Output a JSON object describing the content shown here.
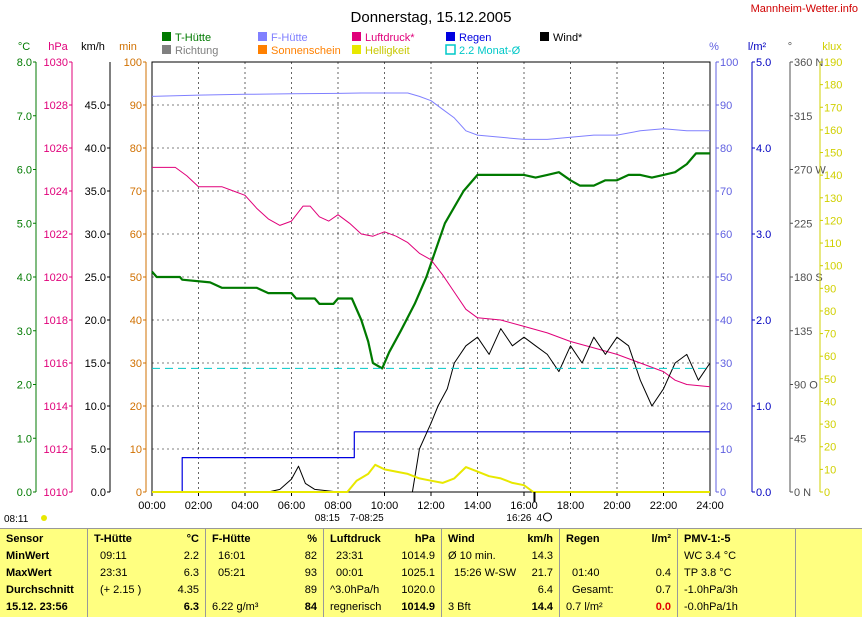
{
  "title": "Donnerstag, 15.12.2005",
  "site": "Mannheim-Wetter.info",
  "colors": {
    "temp": "#007a00",
    "humid": "#8080ff",
    "press": "#e0007a",
    "rain": "#0000e0",
    "wind": "#000000",
    "dir": "#808080",
    "sun": "#ff8000",
    "bright": "#e8e800",
    "avg": "#00c8c8",
    "grid": "#000000"
  },
  "legend": [
    {
      "label": "T-Hütte",
      "color": "#007a00"
    },
    {
      "label": "F-Hütte",
      "color": "#8080ff"
    },
    {
      "label": "Luftdruck*",
      "color": "#e0007a"
    },
    {
      "label": "Regen",
      "color": "#0000e0"
    },
    {
      "label": "Wind*",
      "color": "#000000"
    },
    {
      "label": "Richtung",
      "color": "#808080"
    },
    {
      "label": "Sonnenschein",
      "color": "#ff8000"
    },
    {
      "label": "Helligkeit",
      "color": "#e8e800"
    },
    {
      "label": "2.2 Monat-Ø",
      "color": "#00c8c8"
    }
  ],
  "axes": {
    "temp": {
      "unit": "°C",
      "ticks": [
        "0.0",
        "1.0",
        "2.0",
        "3.0",
        "4.0",
        "5.0",
        "6.0",
        "7.0",
        "8.0"
      ]
    },
    "press": {
      "unit": "hPa",
      "ticks": [
        "1010",
        "1012",
        "1014",
        "1016",
        "1018",
        "1020",
        "1022",
        "1024",
        "1026",
        "1028",
        "1030"
      ]
    },
    "wind": {
      "unit": "km/h",
      "ticks": [
        "0.0",
        "5.0",
        "10.0",
        "15.0",
        "20.0",
        "25.0",
        "30.0",
        "35.0",
        "40.0",
        "45.0"
      ]
    },
    "min": {
      "unit": "min",
      "ticks": [
        "0",
        "10",
        "20",
        "30",
        "40",
        "50",
        "60",
        "70",
        "80",
        "90",
        "100"
      ]
    },
    "humid": {
      "unit": "%",
      "ticks": [
        "0",
        "10",
        "20",
        "30",
        "40",
        "50",
        "60",
        "70",
        "80",
        "90",
        "100"
      ]
    },
    "rain": {
      "unit": "l/m²",
      "ticks": [
        "0.0",
        "1.0",
        "2.0",
        "3.0",
        "4.0",
        "5.0"
      ]
    },
    "dir": {
      "unit": "°",
      "ticks": [
        "0 N",
        "45",
        "90 O",
        "135",
        "180 S",
        "225",
        "270 W",
        "315",
        "360 N"
      ]
    },
    "lux": {
      "unit": "klux",
      "ticks": [
        "0",
        "10",
        "20",
        "30",
        "40",
        "50",
        "60",
        "70",
        "80",
        "90",
        "100",
        "110",
        "120",
        "130",
        "140",
        "150",
        "160",
        "170",
        "180",
        "190"
      ]
    },
    "time": {
      "ticks": [
        "00:00",
        "02:00",
        "04:00",
        "06:00",
        "08:00",
        "10:00",
        "12:00",
        "14:00",
        "16:00",
        "18:00",
        "20:00",
        "22:00",
        "24:00"
      ]
    }
  },
  "sun_events": {
    "rise": "08:15",
    "rise_range": "7-08:25",
    "set": "16:26",
    "moon": "4",
    "top_left": "08:11"
  },
  "chart_data": {
    "type": "line",
    "title": "Donnerstag, 15.12.2005",
    "x_unit": "hours",
    "xlim": [
      0,
      24
    ],
    "series": [
      {
        "name": "T-Hütte",
        "axis": "°C",
        "ylim": [
          0,
          8
        ],
        "points": [
          [
            0,
            4.1
          ],
          [
            0.2,
            4.0
          ],
          [
            1.2,
            4.0
          ],
          [
            1.3,
            3.95
          ],
          [
            2.5,
            3.9
          ],
          [
            3,
            3.8
          ],
          [
            4.5,
            3.8
          ],
          [
            5,
            3.7
          ],
          [
            6,
            3.7
          ],
          [
            6.2,
            3.6
          ],
          [
            7,
            3.6
          ],
          [
            7.2,
            3.5
          ],
          [
            7.8,
            3.5
          ],
          [
            8,
            3.6
          ],
          [
            8.6,
            3.6
          ],
          [
            9,
            3.2
          ],
          [
            9.3,
            2.8
          ],
          [
            9.5,
            2.4
          ],
          [
            9.9,
            2.3
          ],
          [
            10.2,
            2.6
          ],
          [
            10.7,
            3.0
          ],
          [
            11.3,
            3.5
          ],
          [
            11.8,
            4.0
          ],
          [
            12.2,
            4.5
          ],
          [
            12.6,
            5.0
          ],
          [
            13,
            5.3
          ],
          [
            13.4,
            5.6
          ],
          [
            14,
            5.9
          ],
          [
            14.7,
            5.9
          ],
          [
            15,
            5.9
          ],
          [
            15.5,
            5.9
          ],
          [
            16,
            5.9
          ],
          [
            16.5,
            5.85
          ],
          [
            17,
            5.9
          ],
          [
            17.5,
            5.95
          ],
          [
            18,
            5.8
          ],
          [
            18.4,
            5.7
          ],
          [
            19,
            5.7
          ],
          [
            19.5,
            5.8
          ],
          [
            20,
            5.8
          ],
          [
            20.5,
            5.9
          ],
          [
            21,
            5.9
          ],
          [
            21.5,
            5.85
          ],
          [
            22,
            5.9
          ],
          [
            22.5,
            5.95
          ],
          [
            23,
            6.1
          ],
          [
            23.4,
            6.3
          ],
          [
            24,
            6.3
          ]
        ]
      },
      {
        "name": "F-Hütte",
        "axis": "%",
        "ylim": [
          0,
          100
        ],
        "points": [
          [
            0,
            92
          ],
          [
            2,
            92.3
          ],
          [
            4,
            92.5
          ],
          [
            6,
            92.6
          ],
          [
            8,
            92.7
          ],
          [
            9,
            92.8
          ],
          [
            10.5,
            92.8
          ],
          [
            11,
            92.8
          ],
          [
            11.5,
            92
          ],
          [
            12,
            91
          ],
          [
            12.5,
            89
          ],
          [
            13,
            87
          ],
          [
            13.5,
            84
          ],
          [
            14,
            83
          ],
          [
            15,
            82.5
          ],
          [
            16,
            82
          ],
          [
            17,
            82
          ],
          [
            18,
            82.5
          ],
          [
            19,
            83
          ],
          [
            20,
            83
          ],
          [
            21,
            84
          ],
          [
            22,
            84.5
          ],
          [
            23,
            84
          ],
          [
            24,
            84
          ]
        ]
      },
      {
        "name": "Luftdruck*",
        "axis": "hPa",
        "ylim": [
          1010,
          1030
        ],
        "points": [
          [
            0,
            1025.1
          ],
          [
            1,
            1025.1
          ],
          [
            1.5,
            1024.7
          ],
          [
            2,
            1024.2
          ],
          [
            3,
            1024.2
          ],
          [
            3.5,
            1024.0
          ],
          [
            4,
            1023.8
          ],
          [
            4.5,
            1023.2
          ],
          [
            5,
            1022.7
          ],
          [
            5.5,
            1022.4
          ],
          [
            6,
            1022.6
          ],
          [
            6.5,
            1023.3
          ],
          [
            6.8,
            1023.3
          ],
          [
            7.2,
            1022.8
          ],
          [
            7.6,
            1022.6
          ],
          [
            8,
            1022.9
          ],
          [
            8.5,
            1022.5
          ],
          [
            9,
            1022.0
          ],
          [
            9.5,
            1021.9
          ],
          [
            10,
            1022.1
          ],
          [
            10.5,
            1021.9
          ],
          [
            11,
            1021.6
          ],
          [
            11.5,
            1021.1
          ],
          [
            12,
            1020.8
          ],
          [
            12.5,
            1020.1
          ],
          [
            13,
            1019.3
          ],
          [
            13.5,
            1018.5
          ],
          [
            14,
            1018.1
          ],
          [
            15,
            1018.0
          ],
          [
            16,
            1017.7
          ],
          [
            17,
            1017.4
          ],
          [
            18,
            1017.0
          ],
          [
            19,
            1016.7
          ],
          [
            20,
            1016.4
          ],
          [
            21,
            1016.0
          ],
          [
            22,
            1015.6
          ],
          [
            22.5,
            1015.2
          ],
          [
            23,
            1015.0
          ],
          [
            24,
            1014.9
          ]
        ]
      },
      {
        "name": "Regen",
        "axis": "l/m²",
        "ylim": [
          0,
          5
        ],
        "step": true,
        "points": [
          [
            0,
            0
          ],
          [
            1.3,
            0
          ],
          [
            1.3,
            0.4
          ],
          [
            8.7,
            0.4
          ],
          [
            8.7,
            0.7
          ],
          [
            24,
            0.7
          ]
        ]
      },
      {
        "name": "Wind*",
        "axis": "km/h",
        "ylim": [
          0,
          50
        ],
        "points": [
          [
            0,
            0
          ],
          [
            5,
            0
          ],
          [
            5.5,
            0.3
          ],
          [
            6,
            1.5
          ],
          [
            6.3,
            3
          ],
          [
            6.6,
            1
          ],
          [
            7,
            0.3
          ],
          [
            8,
            0
          ],
          [
            11.2,
            0
          ],
          [
            11.5,
            5
          ],
          [
            12,
            8
          ],
          [
            12.3,
            10
          ],
          [
            12.7,
            12
          ],
          [
            13,
            15
          ],
          [
            13.5,
            17
          ],
          [
            14,
            18
          ],
          [
            14.5,
            16
          ],
          [
            15,
            19
          ],
          [
            15.5,
            17
          ],
          [
            16,
            18
          ],
          [
            16.5,
            17
          ],
          [
            17,
            16
          ],
          [
            17.5,
            14
          ],
          [
            18,
            17
          ],
          [
            18.5,
            15
          ],
          [
            19,
            18
          ],
          [
            19.5,
            16
          ],
          [
            20,
            18
          ],
          [
            20.5,
            17
          ],
          [
            21,
            13
          ],
          [
            21.5,
            10
          ],
          [
            22,
            12
          ],
          [
            22.5,
            15
          ],
          [
            23,
            16
          ],
          [
            23.5,
            13
          ],
          [
            24,
            15
          ]
        ]
      },
      {
        "name": "Helligkeit",
        "axis": "klux",
        "ylim": [
          0,
          190
        ],
        "points": [
          [
            0,
            0
          ],
          [
            8.4,
            0
          ],
          [
            8.8,
            5
          ],
          [
            9.3,
            8
          ],
          [
            9.6,
            12
          ],
          [
            10,
            10
          ],
          [
            10.5,
            9
          ],
          [
            11,
            8
          ],
          [
            11.5,
            6
          ],
          [
            12,
            5
          ],
          [
            12.5,
            4
          ],
          [
            13,
            6
          ],
          [
            13.5,
            11
          ],
          [
            14,
            9
          ],
          [
            14.5,
            7
          ],
          [
            15,
            6
          ],
          [
            15.5,
            4
          ],
          [
            16,
            3
          ],
          [
            16.4,
            0
          ],
          [
            24,
            0
          ]
        ]
      }
    ],
    "reference_line": {
      "name": "2.2 Monat-Ø",
      "axis": "°C",
      "value": 2.3
    }
  },
  "footer": {
    "left_top": "08:11",
    "sensor": {
      "header": "Sensor",
      "rows": [
        "MinWert",
        "MaxWert",
        "Durchschnitt"
      ],
      "footer": "15.12. 23:56"
    },
    "temp": {
      "header": "T-Hütte",
      "unit": "°C",
      "rows": [
        [
          "09:11",
          "2.2"
        ],
        [
          "23:31",
          "6.3"
        ],
        [
          "(+ 2.15 )",
          "4.35"
        ]
      ],
      "current": "6.3"
    },
    "humid": {
      "header": "F-Hütte",
      "unit": "%",
      "rows": [
        [
          "16:01",
          "82"
        ],
        [
          "05:21",
          "93"
        ],
        [
          "",
          "89"
        ]
      ],
      "current_extra": "6.22 g/m³",
      "current": "84"
    },
    "press": {
      "header": "Luftdruck",
      "unit": "hPa",
      "rows": [
        [
          "23:31",
          "1014.9"
        ],
        [
          "00:01",
          "1025.1"
        ],
        [
          "^3.0hPa/h",
          "1020.0"
        ]
      ],
      "current_extra": "regnerisch",
      "current": "1014.9"
    },
    "wind": {
      "header": "Wind",
      "unit": "km/h",
      "rows": [
        [
          "Ø 10 min.",
          "14.3"
        ],
        [
          "15:26  W-SW",
          "21.7"
        ],
        [
          "",
          "6.4"
        ]
      ],
      "current_extra": "3 Bft",
      "current": "14.4"
    },
    "rain": {
      "header": "Regen",
      "unit": "l/m²",
      "rows": [
        [
          "",
          ""
        ],
        [
          "01:40",
          "0.4"
        ],
        [
          "Gesamt:",
          "0.7"
        ]
      ],
      "current_extra": "0.7 l/m²",
      "current": "0.0"
    },
    "pmv": {
      "header": "PMV-1:-5",
      "rows": [
        "WC 3.4 °C",
        "TP 3.8 °C",
        "-1.0hPa/3h"
      ],
      "footer": "-0.0hPa/1h"
    }
  }
}
